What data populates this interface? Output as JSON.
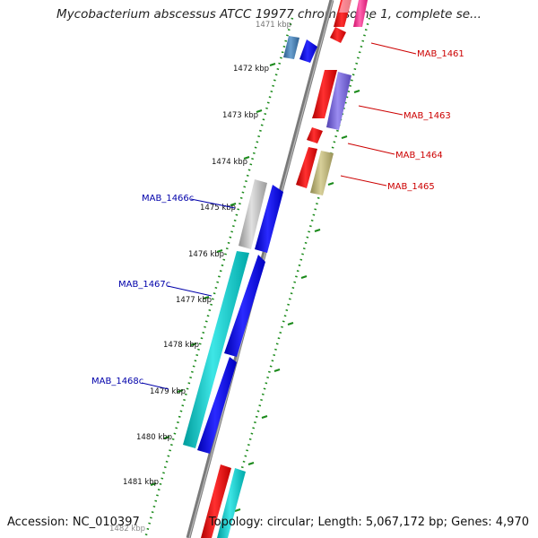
{
  "title": "Mycobacterium abscessus ATCC 19977 chromosome 1, complete se...",
  "footer": {
    "accession": "Accession: NC_010397",
    "topology": "Topology: circular; Length: 5,067,172 bp; Genes: 4,970"
  },
  "ruler": {
    "ticks": [
      "1472 kbp",
      "1473 kbp",
      "1474 kbp",
      "1475 kbp",
      "1476 kbp",
      "1477 kbp",
      "1478 kbp",
      "1479 kbp",
      "1480 kbp",
      "1481 kbp"
    ]
  },
  "gene_labels": {
    "forward": [
      "MAB_1461",
      "MAB_1463",
      "MAB_1464",
      "MAB_1465"
    ],
    "reverse": [
      "MAB_1466c",
      "MAB_1467c",
      "MAB_1468c"
    ]
  },
  "colors": {
    "forward_label": "#cc0000",
    "reverse_label": "#0000aa",
    "forward_cds": "#ff0000",
    "reverse_cds": "#0000ff",
    "cyan_feature": "#00c8c8",
    "grey_feature": "#b8b8b8",
    "purple_feature": "#7060d0",
    "olive_feature": "#b8b070",
    "pink_feature": "#ff2a8a",
    "backbone": "#808080",
    "dotted_ring": "#1a8a1a"
  }
}
